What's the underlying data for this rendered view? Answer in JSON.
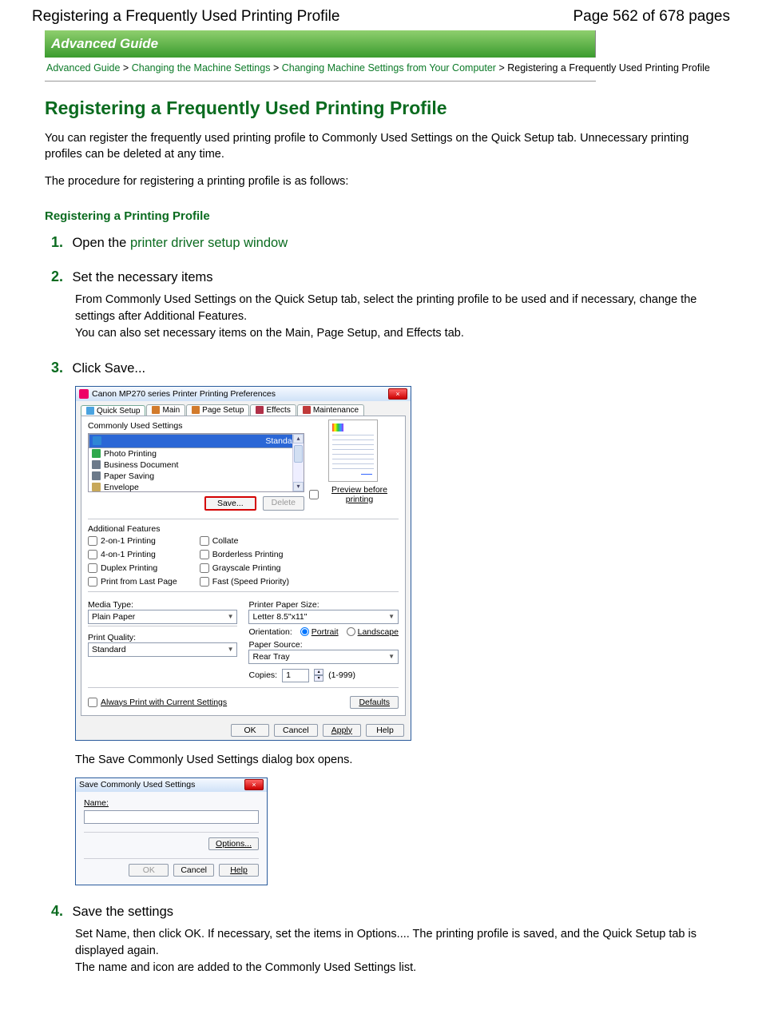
{
  "header": {
    "title": "Registering a Frequently Used Printing Profile",
    "page_of": "Page 562 of 678 pages"
  },
  "banner": "Advanced Guide",
  "breadcrumb": {
    "a": "Advanced Guide",
    "b": "Changing the Machine Settings",
    "c": "Changing Machine Settings from Your Computer",
    "tail": "Registering a Frequently Used Printing Profile",
    "sep": ">"
  },
  "h1": "Registering a Frequently Used Printing Profile",
  "intro1": "You can register the frequently used printing profile to Commonly Used Settings on the Quick Setup tab. Unnecessary printing profiles can be deleted at any time.",
  "intro2": "The procedure for registering a printing profile is as follows:",
  "section_a": "Registering a Printing Profile",
  "steps": {
    "s1": {
      "n": "1.",
      "pre": "Open the ",
      "link": "printer driver setup window"
    },
    "s2": {
      "n": "2.",
      "t": "Set the necessary items",
      "b1": "From Commonly Used Settings on the Quick Setup tab, select the printing profile to be used and if necessary, change the settings after Additional Features.",
      "b2": "You can also set necessary items on the Main, Page Setup, and Effects tab."
    },
    "s3": {
      "n": "3.",
      "t": "Click Save..."
    },
    "s4": {
      "n": "4.",
      "t": "Save the settings",
      "b1": "Set Name, then click OK. If necessary, set the items in Options.... The printing profile is saved, and the Quick Setup tab is displayed again.",
      "b2": "The name and icon are added to the Commonly Used Settings list."
    }
  },
  "dlg": {
    "title": "Canon MP270 series Printer Printing Preferences",
    "close": "×",
    "tabs": {
      "quick": "Quick Setup",
      "main": "Main",
      "pagesetup": "Page Setup",
      "effects": "Effects",
      "maint": "Maintenance"
    },
    "tab_icon_colors": {
      "quick": "#4aa3e0",
      "main": "#d27b2c",
      "pagesetup": "#d27b2c",
      "effects": "#b03048",
      "maint": "#c03a3a"
    },
    "common_label": "Commonly Used Settings",
    "list": {
      "items": [
        "Standard",
        "Photo Printing",
        "Business Document",
        "Paper Saving",
        "Envelope"
      ],
      "icon_colors": [
        "#2f87d6",
        "#2fa84c",
        "#6c7a8a",
        "#6c7a8a",
        "#c7a85a"
      ]
    },
    "save": "Save...",
    "delete": "Delete",
    "preview_label": "Preview before printing",
    "addfeat_label": "Additional Features",
    "feats": {
      "colA": [
        "2-on-1 Printing",
        "4-on-1 Printing",
        "Duplex Printing",
        "Print from Last Page"
      ],
      "colB": [
        "Collate",
        "Borderless Printing",
        "Grayscale Printing",
        "Fast (Speed Priority)"
      ]
    },
    "media_label": "Media Type:",
    "media_value": "Plain Paper",
    "quality_label": "Print Quality:",
    "quality_value": "Standard",
    "paper_label": "Printer Paper Size:",
    "paper_value": "Letter 8.5\"x11\"",
    "orient_label": "Orientation:",
    "orient_portrait": "Portrait",
    "orient_landscape": "Landscape",
    "source_label": "Paper Source:",
    "source_value": "Rear Tray",
    "copies_label": "Copies:",
    "copies_value": "1",
    "copies_range": "(1-999)",
    "always_print": "Always Print with Current Settings",
    "defaults": "Defaults",
    "ok": "OK",
    "cancel": "Cancel",
    "apply": "Apply",
    "help": "Help"
  },
  "after_dlg": "The Save Commonly Used Settings dialog box opens.",
  "dlg2": {
    "title": "Save Commonly Used Settings",
    "close": "×",
    "name_label": "Name:",
    "options": "Options...",
    "ok": "OK",
    "cancel": "Cancel",
    "help": "Help"
  }
}
